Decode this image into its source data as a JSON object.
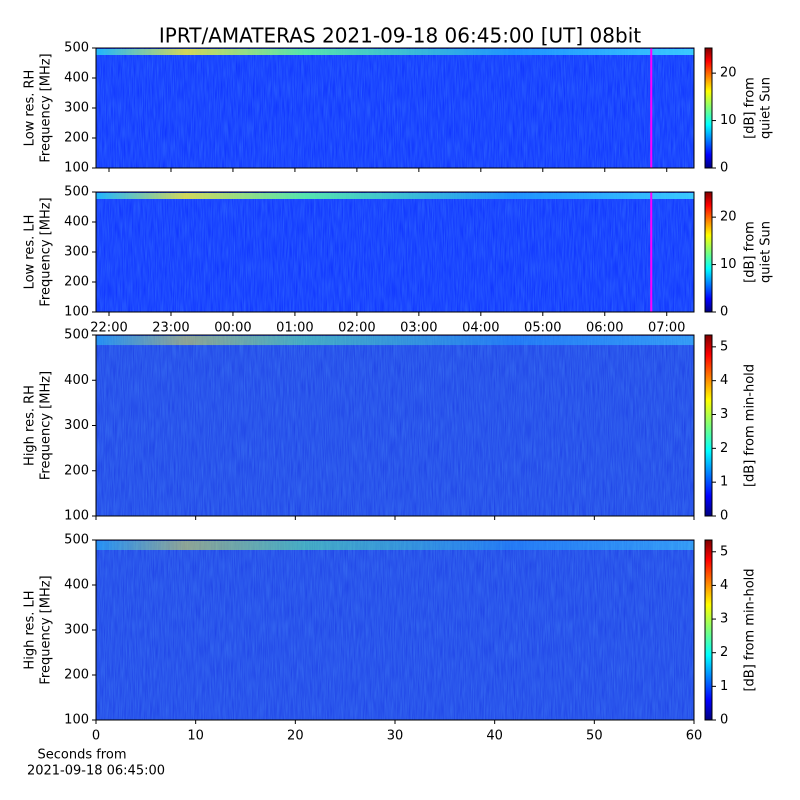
{
  "chart_data": [
    {
      "type": "spectrogram",
      "title": "IPRT/AMATERAS 2021-09-18 06:45:00 [UT]   08bit",
      "ylabel": [
        "Low res. RH",
        "Frequency [MHz]"
      ],
      "xlim": [
        21.79,
        31.44
      ],
      "xticks": [
        {
          "value": 22,
          "label": "22:00"
        },
        {
          "value": 23,
          "label": "23:00"
        },
        {
          "value": 24,
          "label": "00:00"
        },
        {
          "value": 25,
          "label": "01:00"
        },
        {
          "value": 26,
          "label": "02:00"
        },
        {
          "value": 27,
          "label": "03:00"
        },
        {
          "value": 28,
          "label": "04:00"
        },
        {
          "value": 29,
          "label": "05:00"
        },
        {
          "value": 30,
          "label": "06:00"
        },
        {
          "value": 31,
          "label": "07:00"
        }
      ],
      "xtick_labels": false,
      "ylim": [
        100,
        500
      ],
      "yticks": [
        100,
        200,
        300,
        400,
        500
      ],
      "markers": [
        {
          "x": 30.75,
          "color": "#ff00ff"
        }
      ],
      "colormap": "jet",
      "colorbar": {
        "label": [
          "[dB] from",
          "quiet Sun"
        ],
        "lim": [
          0,
          25.3
        ],
        "ticks": [
          0,
          10,
          20
        ]
      }
    },
    {
      "type": "spectrogram",
      "ylabel": [
        "Low res. LH",
        "Frequency [MHz]"
      ],
      "xlim": [
        21.79,
        31.44
      ],
      "xticks": [
        {
          "value": 22,
          "label": "22:00"
        },
        {
          "value": 23,
          "label": "23:00"
        },
        {
          "value": 24,
          "label": "00:00"
        },
        {
          "value": 25,
          "label": "01:00"
        },
        {
          "value": 26,
          "label": "02:00"
        },
        {
          "value": 27,
          "label": "03:00"
        },
        {
          "value": 28,
          "label": "04:00"
        },
        {
          "value": 29,
          "label": "05:00"
        },
        {
          "value": 30,
          "label": "06:00"
        },
        {
          "value": 31,
          "label": "07:00"
        }
      ],
      "xtick_labels": true,
      "ylim": [
        100,
        500
      ],
      "yticks": [
        100,
        200,
        300,
        400,
        500
      ],
      "markers": [
        {
          "x": 30.75,
          "color": "#ff00ff"
        }
      ],
      "colormap": "jet",
      "colorbar": {
        "label": [
          "[dB] from",
          "quiet Sun"
        ],
        "lim": [
          0,
          25.3
        ],
        "ticks": [
          0,
          10,
          20
        ]
      }
    },
    {
      "type": "spectrogram",
      "ylabel": [
        "High res. RH",
        "Frequency [MHz]"
      ],
      "xlim": [
        0,
        60
      ],
      "xticks": [
        0,
        10,
        20,
        30,
        40,
        50,
        60
      ],
      "xtick_labels": false,
      "ylim": [
        100,
        500
      ],
      "yticks": [
        100,
        200,
        300,
        400,
        500
      ],
      "colormap": "jet",
      "colorbar": {
        "label": [
          "[dB] from min-hold"
        ],
        "lim": [
          0,
          5.35
        ],
        "ticks": [
          0,
          1,
          2,
          3,
          4,
          5
        ]
      }
    },
    {
      "type": "spectrogram",
      "ylabel": [
        "High res. LH",
        "Frequency [MHz]"
      ],
      "xlabel": [
        "Seconds from",
        "2021-09-18 06:45:00"
      ],
      "xlim": [
        0,
        60
      ],
      "xticks": [
        0,
        10,
        20,
        30,
        40,
        50,
        60
      ],
      "xtick_labels": true,
      "ylim": [
        100,
        500
      ],
      "yticks": [
        100,
        200,
        300,
        400,
        500
      ],
      "colormap": "jet",
      "colorbar": {
        "label": [
          "[dB] from min-hold"
        ],
        "lim": [
          0,
          5.35
        ],
        "ticks": [
          0,
          1,
          2,
          3,
          4,
          5
        ]
      }
    }
  ]
}
